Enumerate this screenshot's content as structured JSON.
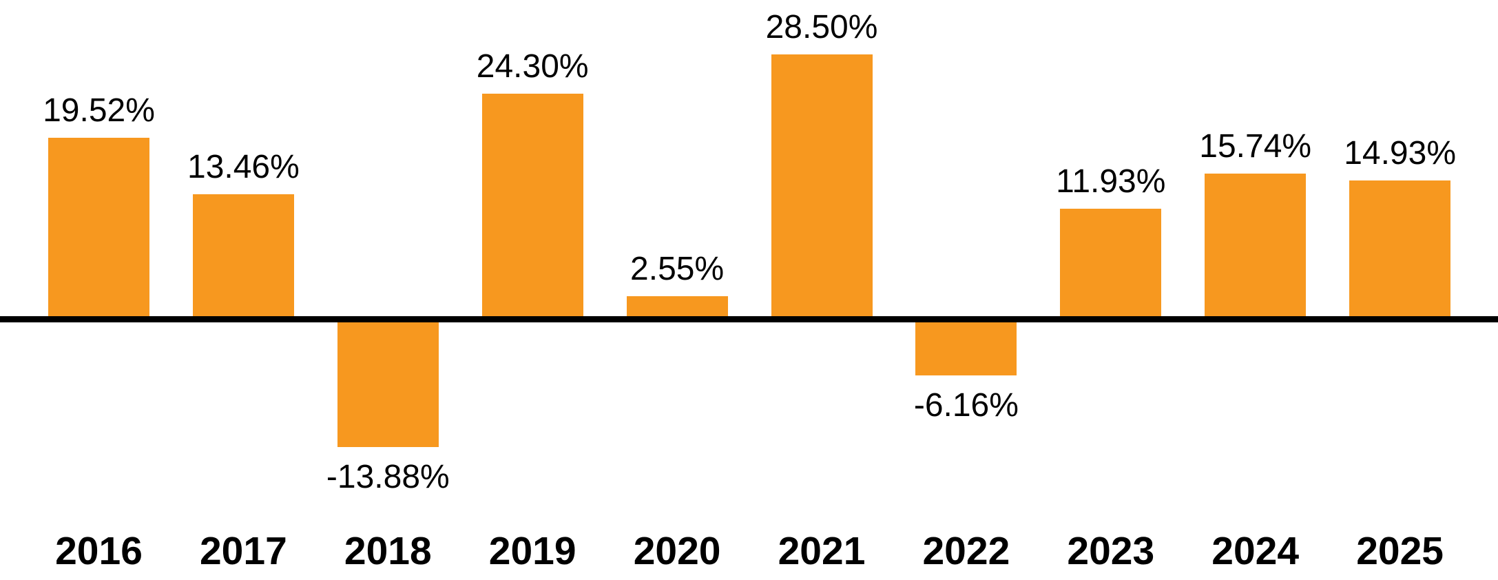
{
  "chart_data": {
    "type": "bar",
    "title": "",
    "xlabel": "",
    "ylabel": "",
    "categories": [
      "2016",
      "2017",
      "2018",
      "2019",
      "2020",
      "2021",
      "2022",
      "2023",
      "2024",
      "2025"
    ],
    "values": [
      19.52,
      13.46,
      -13.88,
      24.3,
      2.55,
      28.5,
      -6.16,
      11.93,
      15.74,
      14.93
    ],
    "value_labels": [
      "19.52%",
      "13.46%",
      "-13.88%",
      "24.30%",
      "2.55%",
      "28.50%",
      "-6.16%",
      "11.93%",
      "15.74%",
      "14.93%"
    ],
    "ylim": [
      -20,
      32
    ],
    "grid": false,
    "legend_position": "none",
    "bar_color": "#F7981F",
    "axis_line_color": "#000000",
    "label_color": "#000000",
    "background_color": "#FFFFFF"
  }
}
